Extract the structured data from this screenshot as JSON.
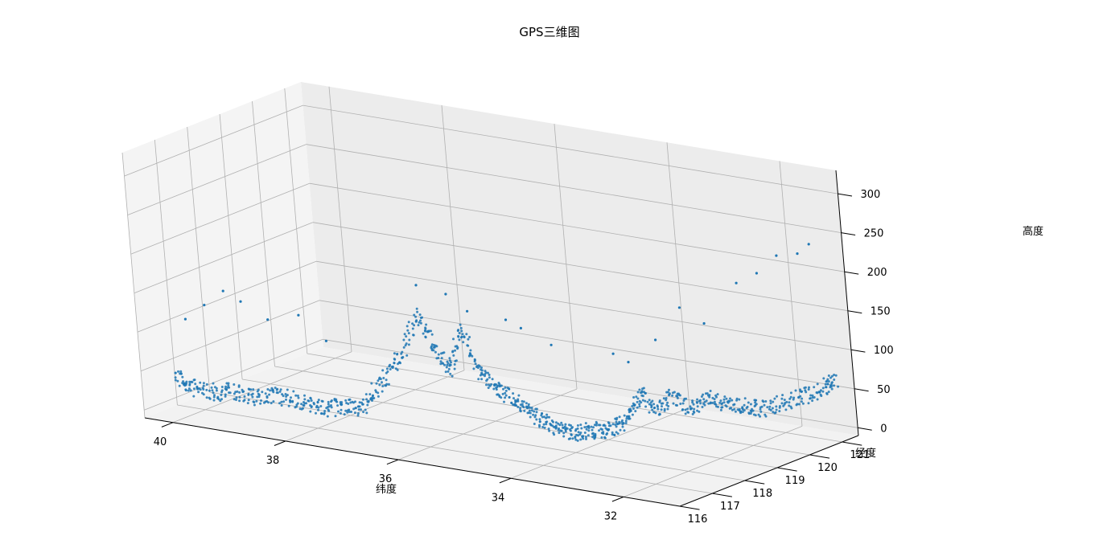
{
  "chart_data": {
    "type": "scatter",
    "projection": "3d",
    "title": "GPS三维图",
    "xlabel": "纬度",
    "ylabel": "经度",
    "zlabel": "高度",
    "xlim": [
      31,
      40.5
    ],
    "ylim": [
      116,
      121.5
    ],
    "zlim": [
      -10,
      330
    ],
    "x_ticks": [
      "40",
      "38",
      "36",
      "34",
      "32"
    ],
    "y_ticks": [
      "116",
      "117",
      "118",
      "119",
      "120",
      "121"
    ],
    "z_ticks": [
      "0",
      "50",
      "100",
      "150",
      "200",
      "250",
      "300"
    ],
    "grid": true,
    "marker_color": "#1f77b4",
    "series": [
      {
        "trace_lat": [
          40.1,
          39.9,
          39.6,
          39.3,
          39.0,
          38.7,
          38.4,
          38.1,
          37.8,
          37.5,
          37.2,
          36.9,
          36.6,
          36.3,
          36.1,
          35.9,
          35.7,
          35.5,
          35.3,
          35.1,
          34.9,
          34.7,
          34.5,
          34.3,
          34.1,
          33.9,
          33.7,
          33.5,
          33.3,
          33.1,
          32.9,
          32.7,
          32.5,
          32.3,
          32.1,
          31.9,
          31.7,
          31.5,
          31.3,
          31.2
        ],
        "trace_lon": [
          116.4,
          116.45,
          116.5,
          116.6,
          116.7,
          116.8,
          116.9,
          117.0,
          117.05,
          117.1,
          117.15,
          117.2,
          117.3,
          117.4,
          117.5,
          117.6,
          117.7,
          117.8,
          117.9,
          118.0,
          118.1,
          118.2,
          118.3,
          118.4,
          118.5,
          118.6,
          118.7,
          118.8,
          118.9,
          119.0,
          119.2,
          119.4,
          119.6,
          119.8,
          120.0,
          120.2,
          120.5,
          120.8,
          121.1,
          121.3
        ],
        "trace_alt": [
          45,
          30,
          25,
          30,
          22,
          28,
          25,
          20,
          18,
          22,
          25,
          60,
          90,
          150,
          110,
          80,
          130,
          80,
          60,
          50,
          35,
          20,
          10,
          5,
          8,
          10,
          12,
          30,
          60,
          40,
          55,
          40,
          50,
          45,
          40,
          35,
          40,
          45,
          55,
          60
        ],
        "outliers_lat": [
          39.8,
          39.5,
          39.2,
          38.9,
          38.5,
          38.0,
          37.6,
          36.2,
          35.8,
          35.5,
          35.0,
          34.4,
          33.6,
          33.0,
          32.7,
          32.4,
          32.0,
          31.8,
          31.6,
          31.4,
          31.3,
          33.4,
          34.8,
          36.5
        ],
        "outliers_lon": [
          116.3,
          116.4,
          116.5,
          116.5,
          116.6,
          116.7,
          116.8,
          117.3,
          117.5,
          117.6,
          117.9,
          118.2,
          118.7,
          119.0,
          119.3,
          119.5,
          119.9,
          120.2,
          120.5,
          120.8,
          121.0,
          118.8,
          118.0,
          117.2
        ],
        "outliers_alt": [
          120,
          140,
          160,
          150,
          130,
          140,
          110,
          190,
          180,
          160,
          150,
          120,
          110,
          130,
          170,
          150,
          200,
          210,
          230,
          230,
          240,
          100,
          140,
          95
        ]
      }
    ]
  }
}
